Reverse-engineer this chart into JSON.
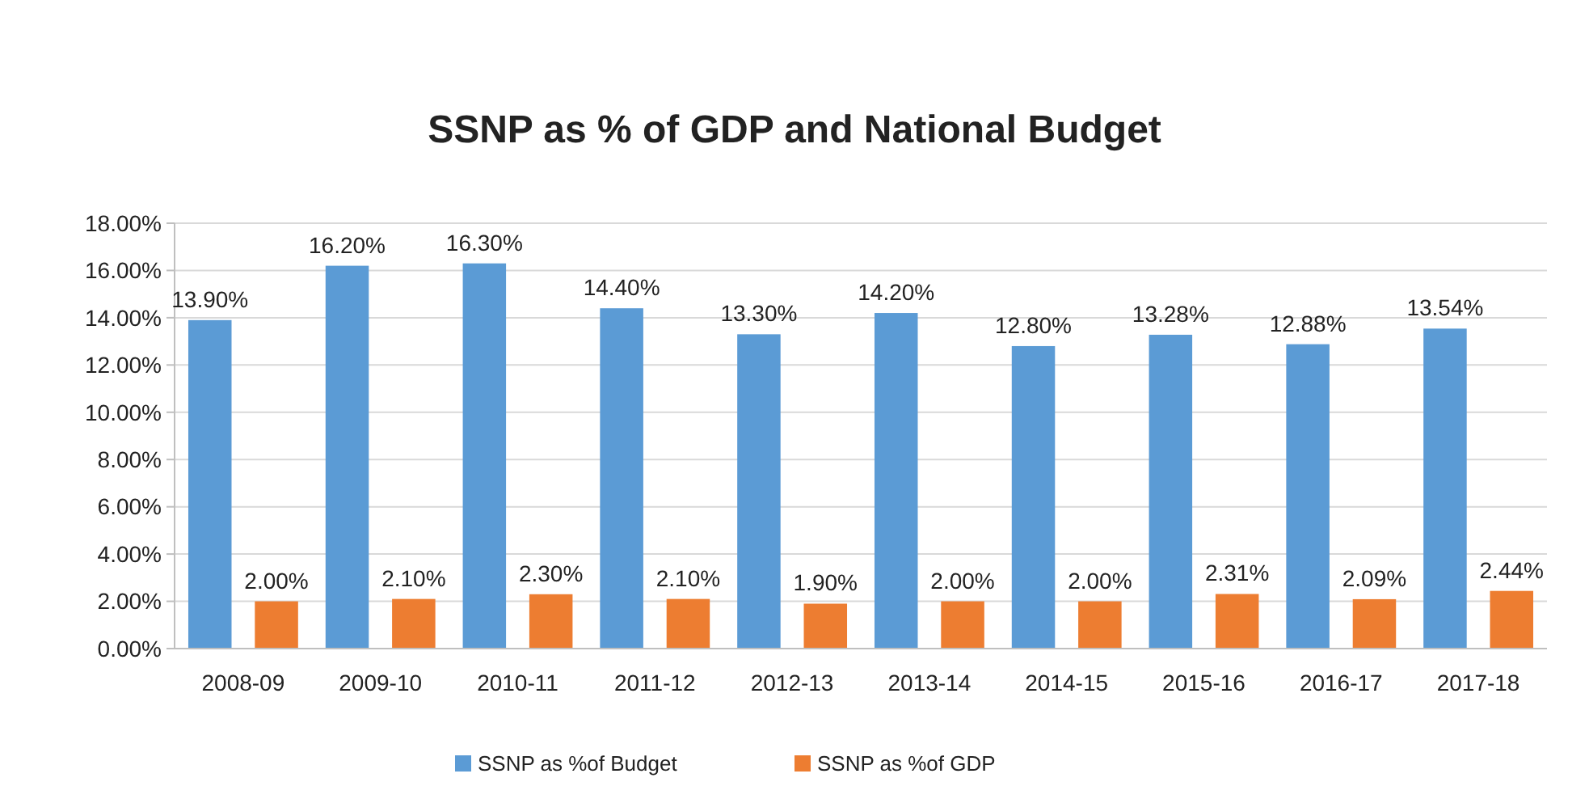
{
  "chart_data": {
    "type": "bar",
    "title": "SSNP as % of GDP and National Budget",
    "categories": [
      "2008-09",
      "2009-10",
      "2010-11",
      "2011-12",
      "2012-13",
      "2013-14",
      "2014-15",
      "2015-16",
      "2016-17",
      "2017-18"
    ],
    "series": [
      {
        "name": "SSNP as %of Budget",
        "color": "#5b9bd5",
        "values": [
          13.9,
          16.2,
          16.3,
          14.4,
          13.3,
          14.2,
          12.8,
          13.28,
          12.88,
          13.54
        ],
        "value_labels": [
          "13.90%",
          "16.20%",
          "16.30%",
          "14.40%",
          "13.30%",
          "14.20%",
          "12.80%",
          "13.28%",
          "12.88%",
          "13.54%"
        ]
      },
      {
        "name": "SSNP as %of GDP",
        "color": "#ed7d31",
        "values": [
          2.0,
          2.1,
          2.3,
          2.1,
          1.9,
          2.0,
          2.0,
          2.31,
          2.09,
          2.44
        ],
        "value_labels": [
          "2.00%",
          "2.10%",
          "2.30%",
          "2.10%",
          "1.90%",
          "2.00%",
          "2.00%",
          "2.31%",
          "2.09%",
          "2.44%"
        ]
      }
    ],
    "ylim": [
      0,
      18
    ],
    "yticks": [
      {
        "value": 0,
        "label": "0.00%"
      },
      {
        "value": 2,
        "label": "2.00%"
      },
      {
        "value": 4,
        "label": "4.00%"
      },
      {
        "value": 6,
        "label": "6.00%"
      },
      {
        "value": 8,
        "label": "8.00%"
      },
      {
        "value": 10,
        "label": "10.00%"
      },
      {
        "value": 12,
        "label": "12.00%"
      },
      {
        "value": 14,
        "label": "14.00%"
      },
      {
        "value": 16,
        "label": "16.00%"
      },
      {
        "value": 18,
        "label": "18.00%"
      }
    ],
    "grid": "y",
    "legend": "bottom"
  }
}
